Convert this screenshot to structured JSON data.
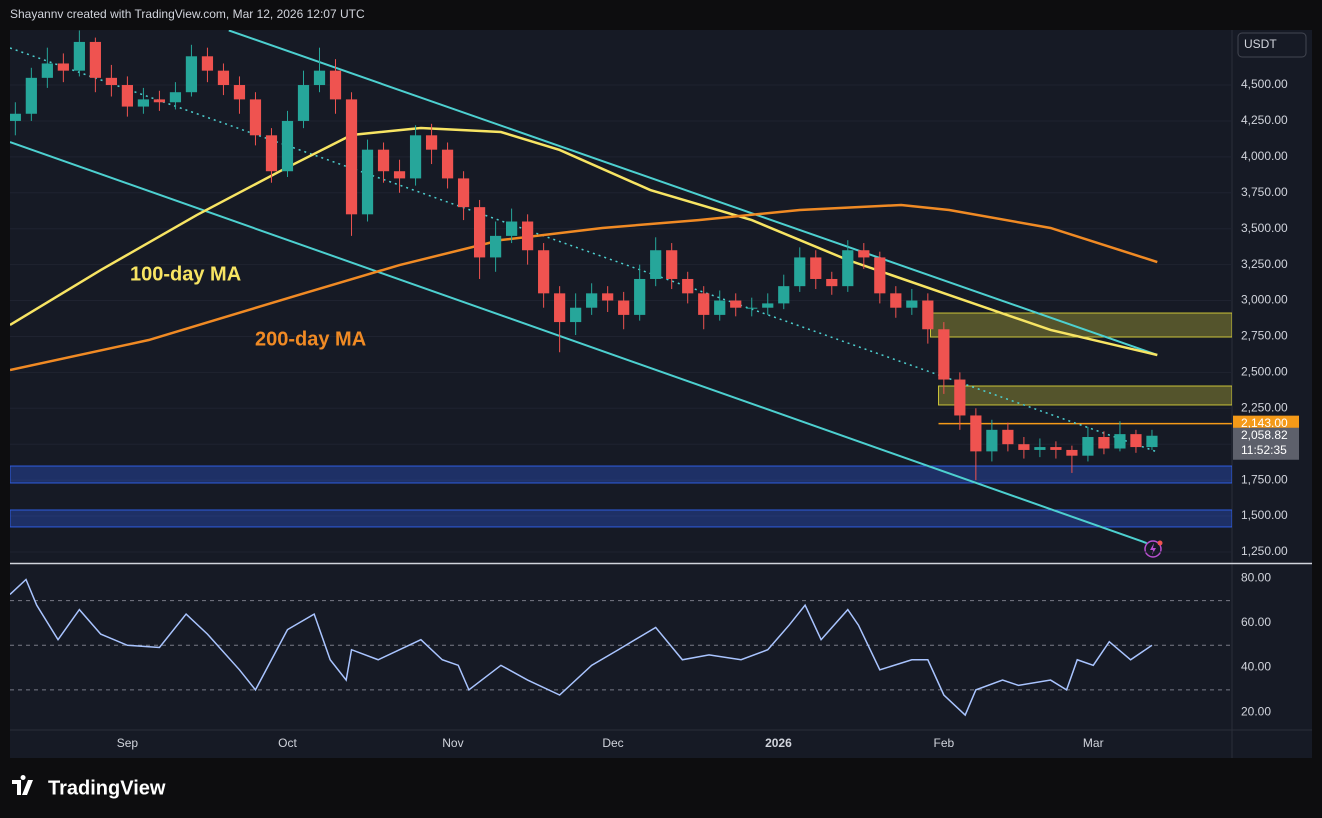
{
  "header": "Shayannv created with TradingView.com, Mar 12, 2026 12:07 UTC",
  "footer": "TradingView",
  "chart_data": [
    {
      "type": "candlestick",
      "currency": "USDT",
      "up_color": "#26a69a",
      "down_color": "#ef5350",
      "x": [
        10,
        13,
        16,
        19,
        22,
        25,
        28,
        31,
        34,
        37,
        40,
        43,
        46,
        49,
        52,
        55,
        58,
        61,
        64,
        67,
        70,
        73,
        76,
        79,
        82,
        85,
        88,
        91,
        94,
        97,
        100,
        103,
        106,
        109,
        112,
        115,
        118,
        121,
        124,
        127,
        130,
        133,
        136,
        139,
        142,
        145,
        148,
        151,
        154,
        157,
        160,
        163,
        166,
        169,
        172,
        175,
        178,
        181,
        184,
        187,
        190,
        193,
        196,
        199,
        202,
        205,
        208,
        211,
        214,
        217,
        220,
        223
      ],
      "open": [
        4250,
        4300,
        4550,
        4650,
        4600,
        4800,
        4550,
        4500,
        4350,
        4400,
        4380,
        4450,
        4700,
        4600,
        4500,
        4400,
        4150,
        3900,
        4250,
        4500,
        4600,
        4400,
        3600,
        4050,
        3900,
        3850,
        4150,
        4050,
        3850,
        3650,
        3300,
        3450,
        3550,
        3350,
        3050,
        2850,
        2950,
        3050,
        3000,
        2900,
        3150,
        3350,
        3150,
        3050,
        2900,
        3000,
        2950,
        2950,
        2980,
        3100,
        3300,
        3150,
        3100,
        3350,
        3300,
        3050,
        2950,
        3000,
        2800,
        2450,
        2200,
        1950,
        2100,
        2000,
        1960,
        1980,
        1960,
        1920,
        2050,
        1970,
        2070,
        1980
      ],
      "high": [
        4380,
        4620,
        4760,
        4720,
        4880,
        4830,
        4640,
        4560,
        4480,
        4460,
        4520,
        4780,
        4760,
        4650,
        4560,
        4450,
        4200,
        4320,
        4600,
        4760,
        4680,
        4450,
        4120,
        4100,
        3980,
        4220,
        4230,
        4100,
        3900,
        3700,
        3550,
        3640,
        3600,
        3400,
        3100,
        3050,
        3120,
        3100,
        3060,
        3250,
        3440,
        3400,
        3200,
        3100,
        3070,
        3050,
        3020,
        3050,
        3180,
        3370,
        3350,
        3200,
        3420,
        3400,
        3340,
        3100,
        3080,
        3050,
        2850,
        2500,
        2250,
        2170,
        2150,
        2050,
        2040,
        2020,
        1990,
        2120,
        2090,
        2160,
        2100,
        2100
      ],
      "low": [
        4150,
        4250,
        4480,
        4520,
        4560,
        4450,
        4420,
        4280,
        4300,
        4320,
        4330,
        4420,
        4520,
        4430,
        4300,
        4080,
        3820,
        3860,
        4200,
        4450,
        4300,
        3450,
        3550,
        3820,
        3750,
        3800,
        3950,
        3780,
        3560,
        3150,
        3200,
        3400,
        3250,
        2950,
        2640,
        2760,
        2900,
        2920,
        2800,
        2860,
        3100,
        3080,
        2980,
        2800,
        2860,
        2890,
        2890,
        2900,
        2940,
        3060,
        3080,
        3040,
        3060,
        3220,
        2980,
        2880,
        2900,
        2700,
        2350,
        2100,
        1750,
        1880,
        1950,
        1900,
        1910,
        1900,
        1800,
        1880,
        1930,
        1950,
        1940,
        1960
      ],
      "close": [
        4300,
        4550,
        4650,
        4600,
        4800,
        4550,
        4500,
        4350,
        4400,
        4380,
        4450,
        4700,
        4600,
        4500,
        4400,
        4150,
        3900,
        4250,
        4500,
        4600,
        4400,
        3600,
        4050,
        3900,
        3850,
        4150,
        4050,
        3850,
        3650,
        3300,
        3450,
        3550,
        3350,
        3050,
        2850,
        2950,
        3050,
        3000,
        2900,
        3150,
        3350,
        3150,
        3050,
        2900,
        3000,
        2950,
        2950,
        2980,
        3100,
        3300,
        3150,
        3100,
        3350,
        3300,
        3050,
        2950,
        3000,
        2800,
        2450,
        2200,
        1950,
        2100,
        2000,
        1960,
        1980,
        1960,
        1920,
        2050,
        1970,
        2070,
        1980,
        2058.82
      ],
      "xlim": [
        9,
        238
      ],
      "ylim": [
        1180,
        4883
      ],
      "yticks": [
        {
          "value": 1250,
          "label": "1,250.00"
        },
        {
          "value": 1500,
          "label": "1,500.00"
        },
        {
          "value": 1750,
          "label": "1,750.00"
        },
        {
          "value": 2000,
          "label": "2,000.00"
        },
        {
          "value": 2250,
          "label": "2,250.00"
        },
        {
          "value": 2500,
          "label": "2,500.00"
        },
        {
          "value": 2750,
          "label": "2,750.00"
        },
        {
          "value": 3000,
          "label": "3,000.00"
        },
        {
          "value": 3250,
          "label": "3,250.00"
        },
        {
          "value": 3500,
          "label": "3,500.00"
        },
        {
          "value": 3750,
          "label": "3,750.00"
        },
        {
          "value": 4000,
          "label": "4,000.00"
        },
        {
          "value": 4250,
          "label": "4,250.00"
        },
        {
          "value": 4500,
          "label": "4,500.00"
        }
      ],
      "series": [
        {
          "name": "100-day MA",
          "color": "#f7e463",
          "x": [
            9,
            26,
            44,
            60,
            73,
            86,
            101,
            112,
            129,
            148,
            166,
            185,
            204,
            224
          ],
          "values": [
            2830,
            3212,
            3595,
            3908,
            4152,
            4201,
            4173,
            4048,
            3769,
            3560,
            3282,
            3038,
            2795,
            2621
          ]
        },
        {
          "name": "200-day MA",
          "color": "#f08a24",
          "x": [
            9,
            35,
            63,
            82,
            101,
            120,
            138,
            157,
            176,
            185,
            204,
            224
          ],
          "values": [
            2516,
            2725,
            3038,
            3247,
            3421,
            3505,
            3560,
            3630,
            3665,
            3630,
            3505,
            3268
          ]
        }
      ],
      "trendlines": [
        {
          "color": "#4dd0d0",
          "x": [
            50,
            224
          ],
          "values": [
            4880,
            2621
          ]
        },
        {
          "color": "#4dd0d0",
          "x": [
            9,
            222
          ],
          "values": [
            4103,
            1312
          ]
        },
        {
          "color": "#4dd0d0",
          "dotted": true,
          "x": [
            9,
            224
          ],
          "values": [
            4758,
            1946
          ]
        }
      ],
      "zones": [
        {
          "color": "#c9c238",
          "from": 181.5,
          "top": 2913,
          "bottom": 2746
        },
        {
          "color": "#c9c238",
          "from": 183,
          "top": 2405,
          "bottom": 2273
        },
        {
          "color": "#2f5de0",
          "top": 1848,
          "bottom": 1730
        },
        {
          "color": "#2f5de0",
          "top": 1542,
          "bottom": 1424
        }
      ],
      "level": {
        "value": 2143,
        "label": "2,143.00",
        "color": "#f59a18",
        "from": 183
      },
      "last_price": {
        "value": 2058.82,
        "label": "2,058.82",
        "countdown": "11:52:35"
      }
    },
    {
      "type": "line",
      "series": [
        {
          "color": "#a9c4ff",
          "x": [
            9,
            12,
            14,
            18,
            22,
            26,
            31,
            37,
            42,
            46,
            52,
            55,
            61,
            66,
            69,
            72,
            73,
            78,
            86,
            90,
            93,
            95,
            101,
            106,
            112,
            118,
            123,
            130,
            135,
            140,
            146,
            151,
            155,
            158,
            161,
            166,
            168,
            172,
            178,
            181,
            184,
            188,
            190,
            195,
            198,
            204,
            207,
            209,
            212,
            215,
            219,
            223
          ],
          "values": [
            72.8,
            79.5,
            68,
            52.5,
            66,
            55,
            50,
            49,
            64,
            55,
            39,
            30,
            57,
            64,
            43.5,
            34.4,
            48,
            43.5,
            52.5,
            43.5,
            41,
            30,
            41,
            34.4,
            27.7,
            41,
            48,
            58,
            43.5,
            45.7,
            43.5,
            48,
            59,
            68,
            52.5,
            66,
            59,
            39,
            43.5,
            43.5,
            27.7,
            18.7,
            30,
            34.4,
            32,
            34.4,
            30,
            43.5,
            41,
            51.6,
            43.5,
            50
          ]
        }
      ],
      "levels": [
        70,
        50,
        30
      ],
      "xlim": [
        9,
        238
      ],
      "ylim": [
        12,
        86
      ],
      "yticks": [
        {
          "value": 20,
          "label": "20.00"
        },
        {
          "value": 40,
          "label": "40.00"
        },
        {
          "value": 60,
          "label": "60.00"
        },
        {
          "value": 80,
          "label": "80.00"
        }
      ],
      "xticks": [
        {
          "value": 31,
          "label": "Sep"
        },
        {
          "value": 61,
          "label": "Oct"
        },
        {
          "value": 92,
          "label": "Nov"
        },
        {
          "value": 122,
          "label": "Dec"
        },
        {
          "value": 153,
          "label": "2026"
        },
        {
          "value": 184,
          "label": "Feb"
        },
        {
          "value": 212,
          "label": "Mar"
        }
      ]
    }
  ]
}
